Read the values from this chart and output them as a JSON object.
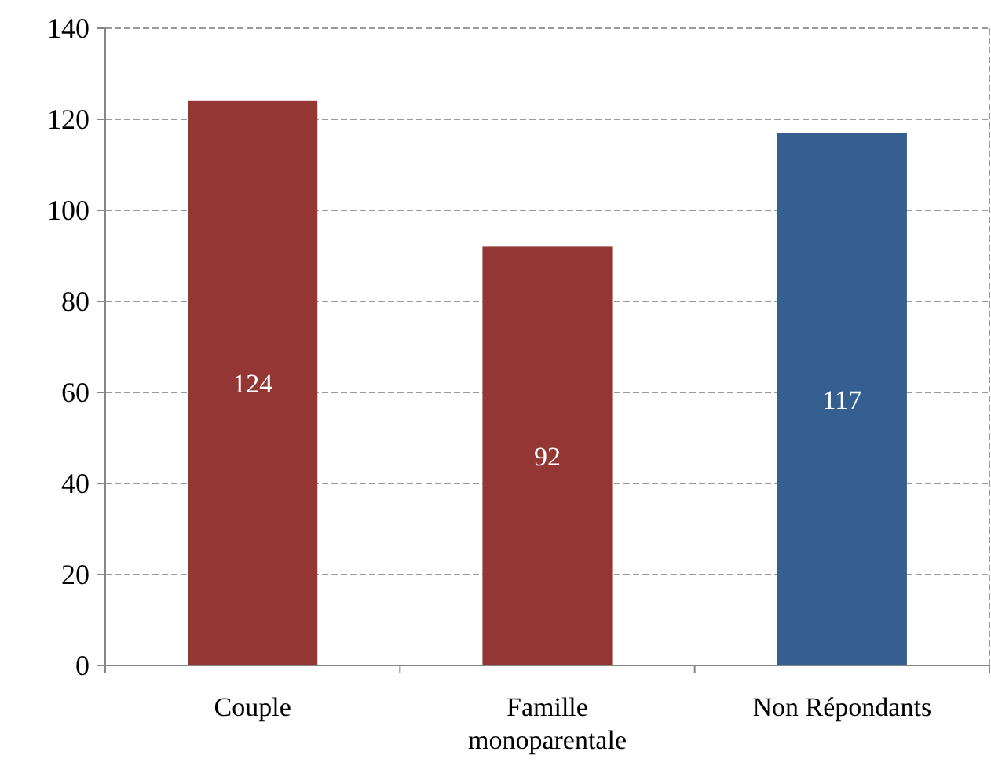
{
  "chart_data": {
    "type": "bar",
    "categories": [
      "Couple",
      "Famille monoparentale",
      "Non Répondants"
    ],
    "values": [
      124,
      92,
      117
    ],
    "colors": [
      "#943634",
      "#943634",
      "#365f91"
    ],
    "ylim": [
      0,
      140
    ],
    "yticks": [
      0,
      20,
      40,
      60,
      80,
      100,
      120,
      140
    ],
    "grid": "y",
    "data_labels": true
  }
}
